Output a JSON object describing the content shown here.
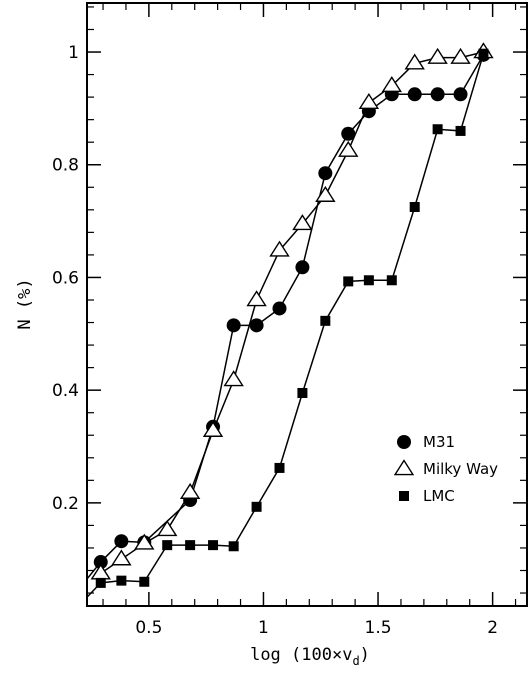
{
  "chart_data": {
    "type": "line",
    "title": "",
    "xlabel": "log (100×v",
    "xlabel_sub": "d",
    "xlabel_close": ")",
    "ylabel": "N (%)",
    "xlim": [
      0.23,
      2.15
    ],
    "ylim": [
      0.017,
      1.087
    ],
    "xticks": [
      0.5,
      1,
      1.5,
      2
    ],
    "xtick_labels": [
      "0.5",
      "1",
      "1.5",
      "2"
    ],
    "yticks": [
      0.2,
      0.4,
      0.6,
      0.8,
      1
    ],
    "ytick_labels": [
      "0.2",
      "0.4",
      "0.6",
      "0.8",
      "1"
    ],
    "grid": false,
    "legend_position": "bottom-right",
    "series": [
      {
        "name": "M31",
        "marker": "circle",
        "x": [
          0.2,
          0.29,
          0.38,
          0.48,
          0.68,
          0.78,
          0.87,
          0.97,
          1.07,
          1.17,
          1.27,
          1.37,
          1.46,
          1.56,
          1.66,
          1.76,
          1.86,
          1.96
        ],
        "y": [
          0.05,
          0.095,
          0.132,
          0.13,
          0.205,
          0.335,
          0.515,
          0.515,
          0.545,
          0.618,
          0.785,
          0.855,
          0.895,
          0.925,
          0.925,
          0.925,
          0.925,
          0.995
        ],
        "marked": [
          false,
          true,
          true,
          true,
          true,
          true,
          true,
          true,
          true,
          true,
          true,
          true,
          true,
          true,
          true,
          true,
          true,
          true
        ]
      },
      {
        "name": "Milky Way",
        "marker": "triangle",
        "x": [
          0.29,
          0.38,
          0.48,
          0.58,
          0.68,
          0.78,
          0.87,
          0.97,
          1.07,
          1.17,
          1.27,
          1.37,
          1.46,
          1.56,
          1.66,
          1.76,
          1.86,
          1.96
        ],
        "y": [
          0.075,
          0.1,
          0.128,
          0.152,
          0.218,
          0.328,
          0.418,
          0.56,
          0.648,
          0.695,
          0.745,
          0.825,
          0.91,
          0.94,
          0.98,
          0.99,
          0.99,
          1.0
        ],
        "marked": [
          true,
          true,
          true,
          true,
          true,
          true,
          true,
          true,
          true,
          true,
          true,
          true,
          true,
          true,
          true,
          true,
          true,
          true
        ]
      },
      {
        "name": "LMC",
        "marker": "square",
        "x": [
          0.2,
          0.29,
          0.38,
          0.48,
          0.58,
          0.68,
          0.78,
          0.87,
          0.97,
          1.07,
          1.17,
          1.27,
          1.37,
          1.46,
          1.56,
          1.66,
          1.76,
          1.86,
          1.96
        ],
        "y": [
          0.02,
          0.058,
          0.062,
          0.06,
          0.125,
          0.125,
          0.125,
          0.123,
          0.193,
          0.262,
          0.395,
          0.523,
          0.593,
          0.595,
          0.595,
          0.725,
          0.863,
          0.86,
          0.997
        ],
        "marked": [
          false,
          true,
          true,
          true,
          true,
          true,
          true,
          true,
          true,
          true,
          true,
          true,
          true,
          true,
          true,
          true,
          true,
          true,
          true
        ]
      }
    ]
  }
}
